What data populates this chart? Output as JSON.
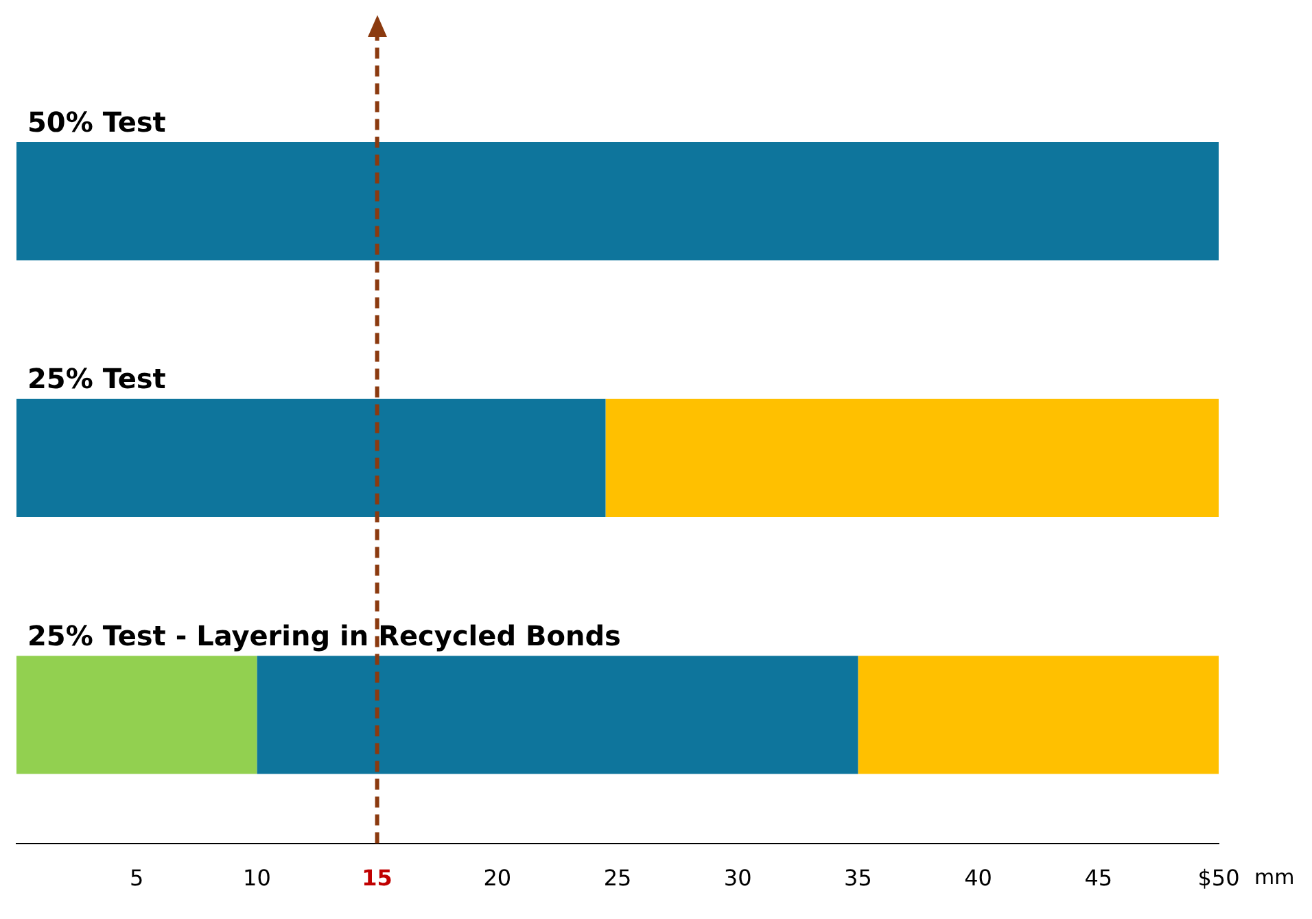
{
  "chart_data": {
    "type": "bar",
    "orientation": "horizontal",
    "stacked": true,
    "xlabel": "mm",
    "categories": [
      "50% Test",
      "25% Test",
      "25% Test - Layering in Recycled Bonds"
    ],
    "series": [
      {
        "color": "#92d050",
        "values": [
          null,
          null,
          10
        ]
      },
      {
        "color": "#0e759c",
        "values": [
          50,
          24.5,
          25
        ]
      },
      {
        "color": "#ffc000",
        "values": [
          null,
          25.5,
          15
        ]
      }
    ],
    "xlim": [
      0,
      50
    ],
    "xticks": [
      5,
      10,
      15,
      20,
      25,
      30,
      35,
      40,
      45,
      {
        "value": 50,
        "label": "$50"
      }
    ],
    "ref_lines": [
      {
        "axis": "x",
        "value": 15,
        "color": "#8b3a0f",
        "line_style": "dashed"
      }
    ],
    "grid": false,
    "legend": false
  }
}
